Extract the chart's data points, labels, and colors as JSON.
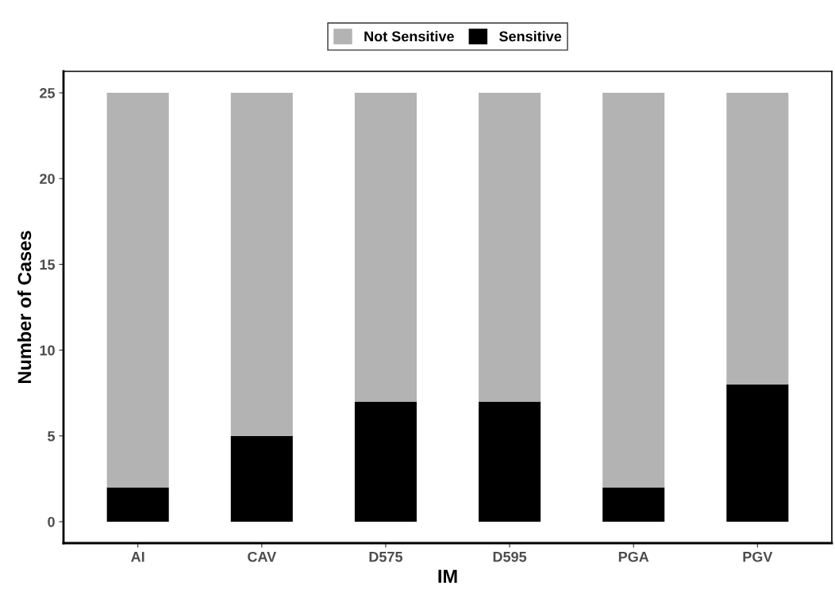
{
  "chart_data": {
    "type": "bar",
    "stacked": true,
    "xlabel": "IM",
    "ylabel": "Number of Cases",
    "categories": [
      "AI",
      "CAV",
      "D575",
      "D595",
      "PGA",
      "PGV"
    ],
    "series": [
      {
        "name": "Sensitive",
        "color": "#000000",
        "values": [
          2,
          5,
          7,
          7,
          2,
          8
        ]
      },
      {
        "name": "Not Sensitive",
        "color": "#b3b3b3",
        "values": [
          23,
          20,
          18,
          18,
          23,
          17
        ]
      }
    ],
    "ylim": [
      -1.25,
      26.25
    ],
    "yticks": [
      0,
      5,
      10,
      15,
      20,
      25
    ],
    "grid": false,
    "legend": "top"
  }
}
